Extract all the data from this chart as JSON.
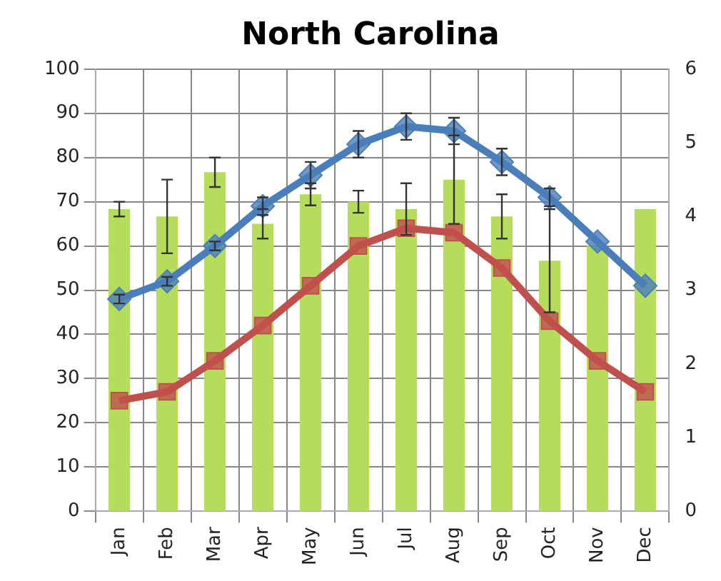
{
  "chart_data": {
    "type": "bar",
    "title": "North Carolina",
    "categories": [
      "Jan",
      "Feb",
      "Mar",
      "Apr",
      "May",
      "Jun",
      "Jul",
      "Aug",
      "Sep",
      "Oct",
      "Nov",
      "Dec"
    ],
    "series": [
      {
        "axis": "y2",
        "color": "#b5dc5a",
        "values": [
          4.1,
          4.0,
          4.6,
          3.9,
          4.3,
          4.2,
          4.1,
          4.5,
          4.0,
          3.4,
          3.6,
          4.1
        ],
        "errors": [
          0.1,
          0.5,
          0.2,
          0.2,
          0.15,
          0.15,
          0.35,
          0.6,
          0.3,
          0.7,
          null,
          null
        ]
      },
      {
        "type": "line",
        "marker": "diamond",
        "color": "#4a7ebb",
        "values": [
          48,
          52,
          60,
          69,
          76,
          83,
          87,
          86,
          79,
          71,
          61,
          51
        ],
        "errors": [
          1,
          1,
          1,
          2,
          3,
          3,
          3,
          3,
          3,
          2,
          null,
          null
        ]
      },
      {
        "type": "line",
        "marker": "square",
        "color": "#c0504d",
        "values": [
          25,
          27,
          34,
          42,
          51,
          60,
          64,
          63,
          55,
          43,
          34,
          27
        ]
      }
    ],
    "ylim": [
      0,
      100
    ],
    "yticks": [
      0,
      10,
      20,
      30,
      40,
      50,
      60,
      70,
      80,
      90,
      100
    ],
    "y2lim": [
      0,
      6
    ],
    "y2ticks": [
      0,
      1,
      2,
      3,
      4,
      5,
      6
    ],
    "grid": true,
    "legend": false
  }
}
